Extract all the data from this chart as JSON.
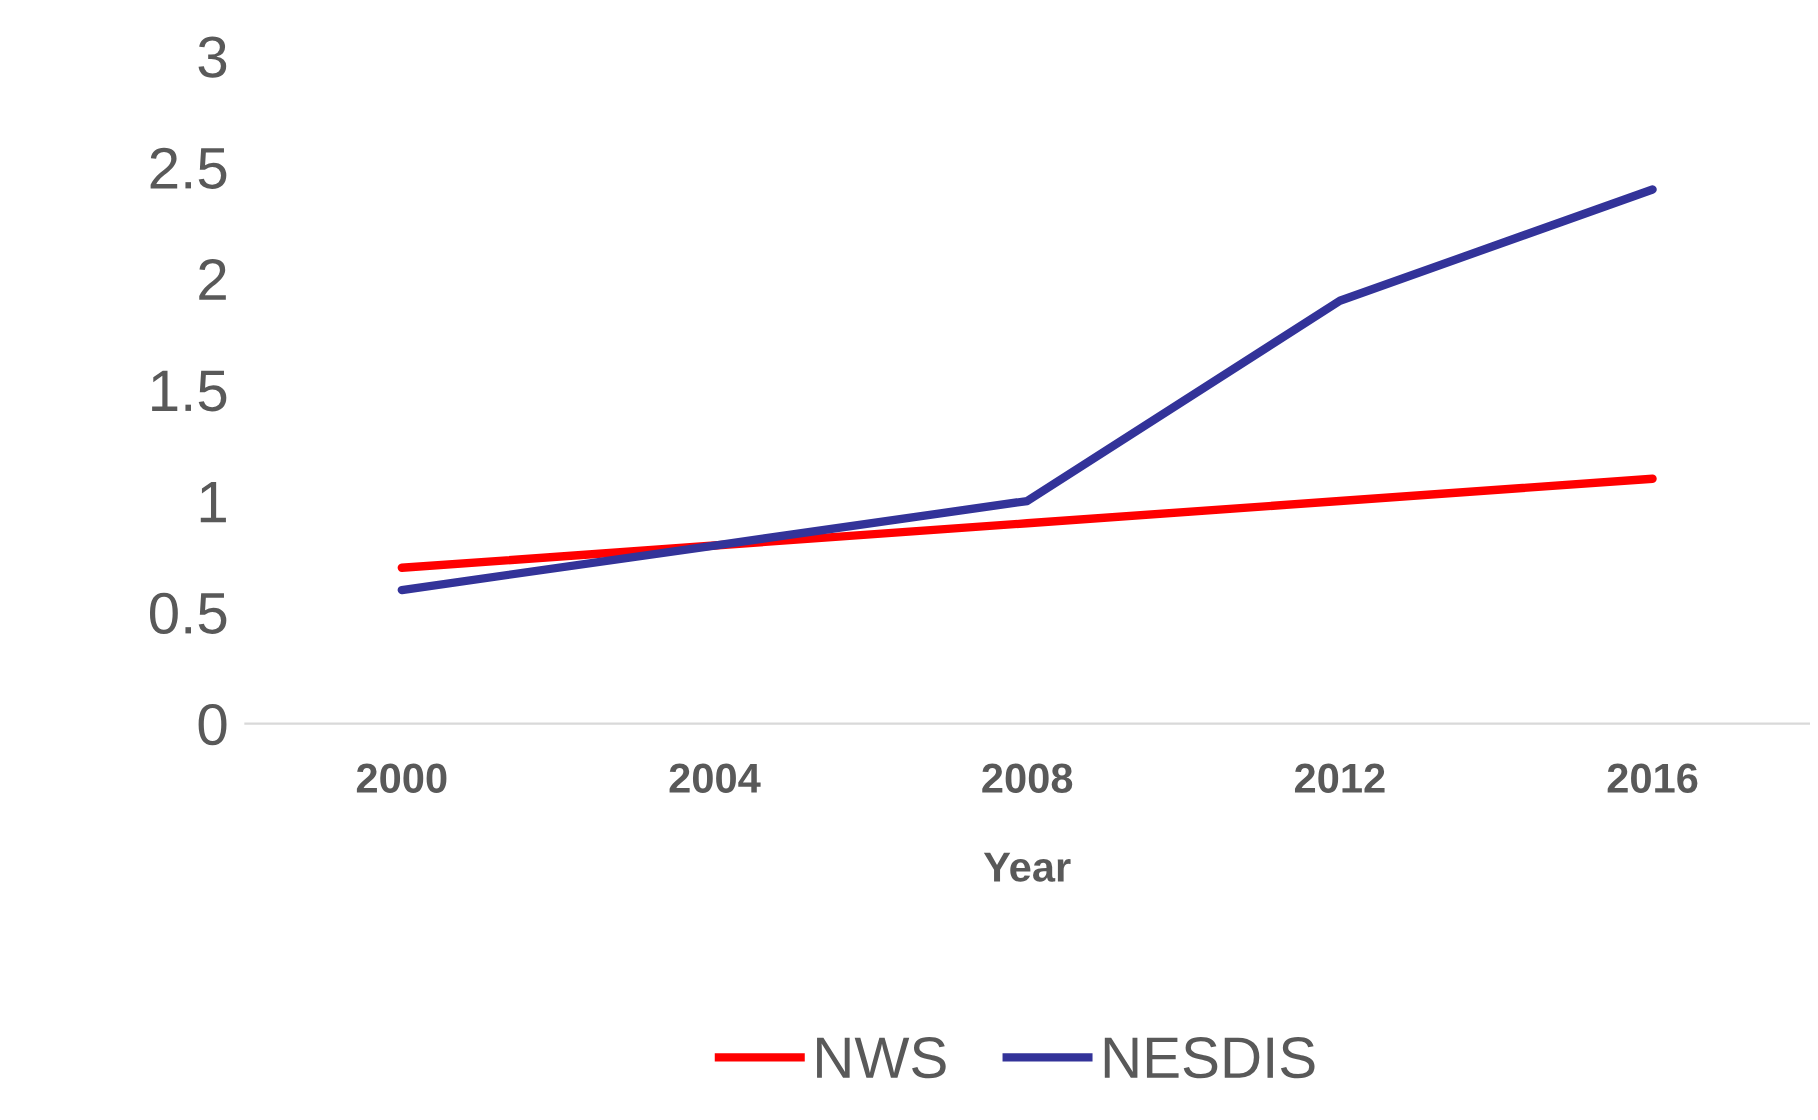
{
  "chart_data": {
    "type": "line",
    "xlabel": "Year",
    "categories": [
      "2000",
      "2004",
      "2008",
      "2012",
      "2016"
    ],
    "series": [
      {
        "name": "NWS",
        "color": "#ff0000",
        "values": [
          0.7,
          0.8,
          0.9,
          1.0,
          1.1
        ]
      },
      {
        "name": "NESDIS",
        "color": "#333399",
        "values": [
          0.6,
          0.8,
          1.0,
          1.9,
          2.4
        ]
      }
    ],
    "ylim": [
      0,
      3
    ],
    "yticks": [
      0,
      0.5,
      1,
      1.5,
      2,
      2.5,
      3
    ],
    "grid": false,
    "legend": "bottom",
    "marker": "none",
    "line_style": "solid"
  }
}
